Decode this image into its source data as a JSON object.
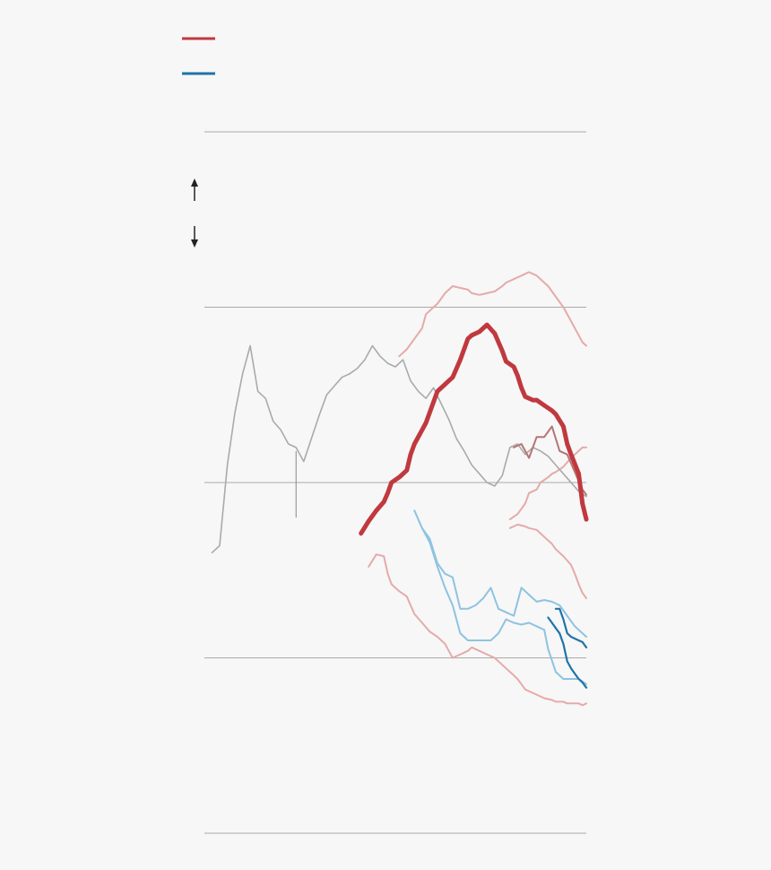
{
  "chart_data": {
    "type": "line",
    "title": "",
    "xlabel": "",
    "ylabel": "",
    "xlim": [
      0,
      100
    ],
    "ylim": [
      -2,
      2
    ],
    "grid": true,
    "gridlines": [
      2,
      1,
      0,
      -1,
      -2
    ],
    "legend": {
      "placement": "top-left",
      "entries": [
        {
          "name": "",
          "color": "#c0393f"
        },
        {
          "name": "",
          "color": "#1f74a8"
        }
      ]
    },
    "direction_arrows": [
      "up",
      "down"
    ],
    "colors": {
      "red_bold": "#c0393f",
      "red_light": "#e5aaaa",
      "red_mid": "#b77474",
      "gray": "#aaaaaa",
      "blue_light": "#8ec3e0",
      "blue_dark": "#1f74a8",
      "grid": "#aaaaaa",
      "background": "#f7f7f7"
    },
    "series": [
      {
        "style": "red_bold",
        "x": [
          41,
          43,
          45,
          47,
          48,
          49,
          51,
          53,
          54,
          55,
          57,
          58,
          60,
          61,
          63,
          64,
          65,
          67,
          69,
          70,
          72,
          74,
          76,
          78,
          79,
          81,
          82,
          83,
          84,
          86,
          87,
          89,
          91,
          92,
          94,
          95,
          96,
          98,
          99,
          100
        ],
        "y": [
          -0.29,
          -0.22,
          -0.16,
          -0.11,
          -0.06,
          0.0,
          0.03,
          0.07,
          0.16,
          0.22,
          0.3,
          0.34,
          0.46,
          0.52,
          0.56,
          0.58,
          0.6,
          0.7,
          0.82,
          0.84,
          0.86,
          0.9,
          0.85,
          0.75,
          0.69,
          0.66,
          0.61,
          0.54,
          0.49,
          0.47,
          0.47,
          0.44,
          0.41,
          0.39,
          0.32,
          0.22,
          0.16,
          0.05,
          -0.12,
          -0.21
        ]
      },
      {
        "style": "red_light",
        "x": [
          51,
          53,
          55,
          57,
          58,
          60,
          61,
          63,
          65,
          67,
          69,
          70,
          72,
          74,
          76,
          78,
          79,
          81,
          83,
          85,
          87,
          89,
          90,
          92,
          94,
          96,
          98,
          99,
          100
        ],
        "y": [
          0.72,
          0.76,
          0.82,
          0.88,
          0.96,
          1.0,
          1.02,
          1.08,
          1.12,
          1.11,
          1.1,
          1.08,
          1.07,
          1.08,
          1.09,
          1.12,
          1.14,
          1.16,
          1.18,
          1.2,
          1.18,
          1.14,
          1.12,
          1.06,
          1.0,
          0.92,
          0.84,
          0.8,
          0.78
        ]
      },
      {
        "style": "red_light",
        "x": [
          80,
          82,
          84,
          85,
          87,
          88,
          90,
          91,
          92,
          94,
          96,
          97,
          98,
          99,
          100
        ],
        "y": [
          -0.21,
          -0.18,
          -0.12,
          -0.06,
          -0.04,
          0.0,
          0.03,
          0.05,
          0.06,
          0.09,
          0.14,
          0.16,
          0.18,
          0.2,
          0.2
        ]
      },
      {
        "style": "red_light",
        "x": [
          80,
          82,
          84,
          85,
          87,
          88,
          90,
          91,
          92,
          94,
          96,
          97,
          98,
          99,
          100
        ],
        "y": [
          -0.26,
          -0.24,
          -0.25,
          -0.26,
          -0.27,
          -0.29,
          -0.33,
          -0.35,
          -0.38,
          -0.42,
          -0.47,
          -0.52,
          -0.58,
          -0.63,
          -0.66
        ]
      },
      {
        "style": "red_light",
        "x": [
          43,
          45,
          47,
          48,
          49,
          51,
          53,
          54,
          55,
          57,
          59,
          61,
          63,
          64,
          65,
          67,
          69,
          70,
          72,
          74,
          76,
          78,
          79,
          81,
          82,
          83,
          84,
          86,
          88,
          89,
          91,
          92,
          94,
          95,
          96,
          98,
          99,
          100
        ],
        "y": [
          -0.48,
          -0.41,
          -0.42,
          -0.52,
          -0.58,
          -0.62,
          -0.65,
          -0.7,
          -0.75,
          -0.8,
          -0.85,
          -0.88,
          -0.92,
          -0.96,
          -1.0,
          -0.98,
          -0.96,
          -0.94,
          -0.96,
          -0.98,
          -1.0,
          -1.04,
          -1.06,
          -1.1,
          -1.12,
          -1.15,
          -1.18,
          -1.2,
          -1.22,
          -1.23,
          -1.24,
          -1.25,
          -1.25,
          -1.26,
          -1.26,
          -1.26,
          -1.27,
          -1.26
        ]
      },
      {
        "style": "gray",
        "x": [
          2,
          4,
          6,
          8,
          10,
          12,
          14,
          16,
          18,
          20,
          22,
          24,
          26,
          28,
          30,
          32,
          34,
          36,
          38,
          40,
          42,
          44,
          46,
          48,
          50,
          52,
          54,
          56,
          58,
          60,
          62,
          64,
          66,
          68,
          70,
          72,
          74,
          76,
          78,
          79,
          80,
          82,
          84,
          86,
          88,
          90,
          92,
          94,
          96,
          98,
          100
        ],
        "y": [
          -0.4,
          -0.36,
          0.1,
          0.4,
          0.62,
          0.78,
          0.52,
          0.48,
          0.35,
          0.3,
          0.22,
          0.2,
          0.12,
          0.25,
          0.38,
          0.5,
          0.55,
          0.6,
          0.62,
          0.65,
          0.7,
          0.78,
          0.72,
          0.68,
          0.66,
          0.7,
          0.58,
          0.52,
          0.48,
          0.54,
          0.45,
          0.36,
          0.25,
          0.18,
          0.1,
          0.05,
          0.0,
          -0.02,
          0.04,
          0.12,
          0.2,
          0.22,
          0.16,
          0.2,
          0.18,
          0.15,
          0.1,
          0.05,
          0.0,
          -0.05,
          -0.08
        ]
      },
      {
        "style": "red_mid",
        "x": [
          81,
          83,
          85,
          87,
          89,
          91,
          93,
          95,
          97,
          99,
          100
        ],
        "y": [
          0.2,
          0.22,
          0.14,
          0.26,
          0.26,
          0.32,
          0.18,
          0.16,
          0.06,
          -0.04,
          -0.07
        ]
      },
      {
        "style": "blue_light",
        "x": [
          55,
          57,
          59,
          61,
          63,
          65,
          67,
          69,
          71,
          73,
          75,
          77,
          79,
          81,
          83,
          85,
          87,
          89,
          91,
          93,
          95,
          97,
          99,
          100
        ],
        "y": [
          -0.16,
          -0.26,
          -0.32,
          -0.46,
          -0.52,
          -0.54,
          -0.72,
          -0.72,
          -0.7,
          -0.66,
          -0.6,
          -0.72,
          -0.74,
          -0.76,
          -0.6,
          -0.64,
          -0.68,
          -0.67,
          -0.68,
          -0.7,
          -0.76,
          -0.82,
          -0.86,
          -0.88
        ]
      },
      {
        "style": "blue_light",
        "x": [
          57,
          59,
          61,
          63,
          65,
          67,
          69,
          71,
          73,
          75,
          77,
          79,
          81,
          83,
          85,
          87,
          88,
          89,
          90,
          92,
          94,
          96,
          98,
          100
        ],
        "y": [
          -0.26,
          -0.34,
          -0.48,
          -0.6,
          -0.7,
          -0.86,
          -0.9,
          -0.9,
          -0.9,
          -0.9,
          -0.86,
          -0.78,
          -0.8,
          -0.81,
          -0.8,
          -0.82,
          -0.83,
          -0.84,
          -0.95,
          -1.08,
          -1.12,
          -1.12,
          -1.12,
          -1.15
        ]
      },
      {
        "style": "blue_dark",
        "x": [
          92,
          93,
          94,
          95,
          96,
          97,
          98,
          99,
          100
        ],
        "y": [
          -0.72,
          -0.72,
          -0.78,
          -0.86,
          -0.88,
          -0.89,
          -0.9,
          -0.91,
          -0.94
        ]
      },
      {
        "style": "blue_dark",
        "x": [
          90,
          91,
          92,
          93,
          94,
          95,
          96,
          97,
          98,
          99,
          100
        ],
        "y": [
          -0.77,
          -0.8,
          -0.83,
          -0.86,
          -0.92,
          -1.02,
          -1.06,
          -1.09,
          -1.12,
          -1.14,
          -1.17
        ]
      }
    ],
    "annotations": [
      {
        "type": "reference_line",
        "x": 24,
        "y_from": 0.18,
        "y_to": -0.2
      }
    ]
  }
}
